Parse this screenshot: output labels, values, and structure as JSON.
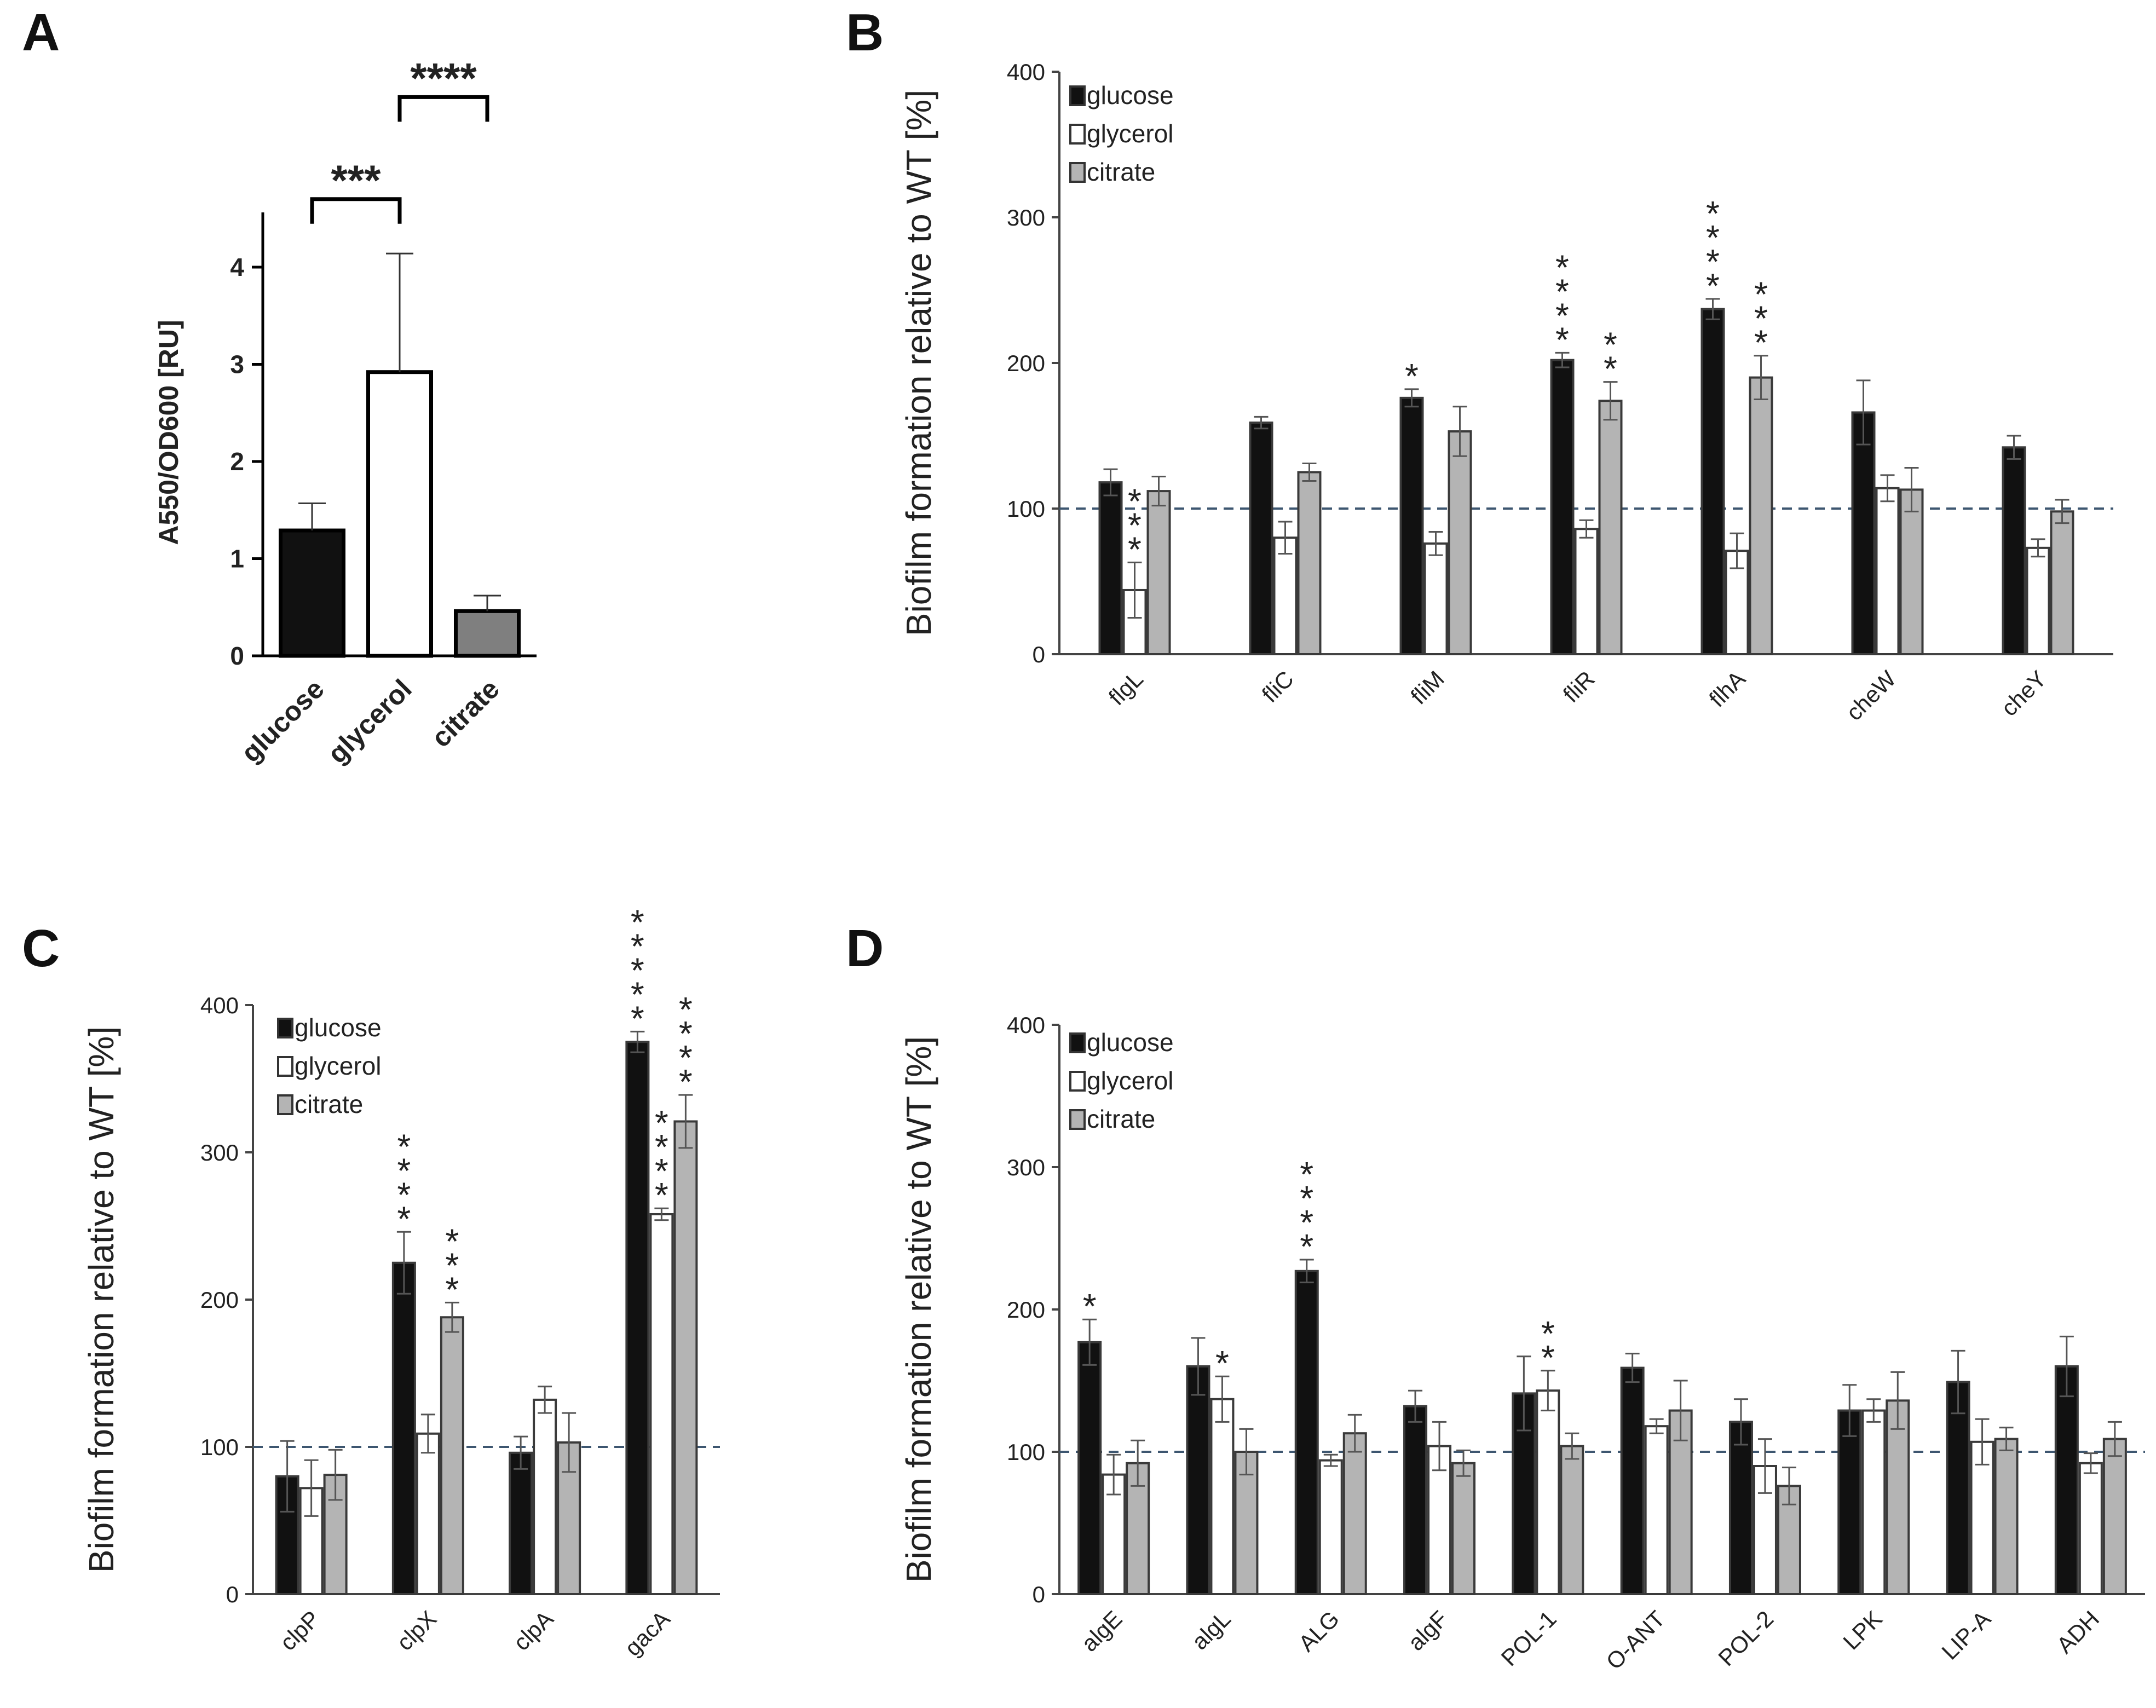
{
  "colors": {
    "glucose": "#111111",
    "glycerol": "#ffffff",
    "citrate": "#b4b4b4",
    "panelA_citrate": "#7f7f7f",
    "axis": "#444444",
    "dashed": "#3d5670"
  },
  "chart_data": [
    {
      "id": "A",
      "panel_label": "A",
      "type": "bar",
      "ylabel": "A550/OD600 [RU]",
      "ylim": [
        0,
        4.6
      ],
      "yticks": [
        "0",
        "1",
        "2",
        "3",
        "4"
      ],
      "categories": [
        "glucose",
        "glycerol",
        "citrate"
      ],
      "values": [
        1.29,
        2.92,
        0.46
      ],
      "errors": [
        0.28,
        1.22,
        0.16
      ],
      "brackets": [
        {
          "from": 0,
          "to": 1,
          "y": 4.7,
          "label": "***"
        },
        {
          "from": 1,
          "to": 2,
          "y": 5.75,
          "label": "****"
        }
      ]
    },
    {
      "id": "B",
      "panel_label": "B",
      "type": "bar",
      "ylabel": "Biofilm formation relative to WT [%]",
      "ylim": [
        0,
        400
      ],
      "yticks": [
        "0",
        "100",
        "200",
        "300",
        "400"
      ],
      "reference_line": 100,
      "categories": [
        "flgL",
        "fliC",
        "fliM",
        "fliR",
        "flhA",
        "cheW",
        "cheY"
      ],
      "legend": [
        "glucose",
        "glycerol",
        "citrate"
      ],
      "series": [
        {
          "name": "glucose",
          "values": [
            118,
            159,
            176,
            202,
            237,
            166,
            142
          ],
          "errors": [
            9,
            4,
            6,
            5,
            7,
            22,
            8
          ],
          "stars": [
            "",
            "",
            "*",
            "****",
            "****",
            "",
            ""
          ]
        },
        {
          "name": "glycerol",
          "values": [
            44,
            80,
            76,
            86,
            71,
            114,
            73
          ],
          "errors": [
            19,
            11,
            8,
            6,
            12,
            9,
            6
          ],
          "stars": [
            "***",
            "",
            "",
            "",
            "",
            "",
            ""
          ]
        },
        {
          "name": "citrate",
          "values": [
            112,
            125,
            153,
            174,
            190,
            113,
            98
          ],
          "errors": [
            10,
            6,
            17,
            13,
            15,
            15,
            8
          ],
          "stars": [
            "",
            "",
            "",
            "**",
            "***",
            "",
            ""
          ]
        }
      ]
    },
    {
      "id": "C",
      "panel_label": "C",
      "type": "bar",
      "ylabel": "Biofilm formation relative to WT [%]",
      "ylim": [
        0,
        400
      ],
      "yticks": [
        "0",
        "100",
        "200",
        "300",
        "400"
      ],
      "reference_line": 100,
      "categories": [
        "clpP",
        "clpX",
        "clpA",
        "gacA"
      ],
      "legend": [
        "glucose",
        "glycerol",
        "citrate"
      ],
      "series": [
        {
          "name": "glucose",
          "values": [
            80,
            225,
            96,
            375
          ],
          "errors": [
            24,
            21,
            11,
            7
          ],
          "stars": [
            "",
            "****",
            "",
            "*****"
          ]
        },
        {
          "name": "glycerol",
          "values": [
            72,
            109,
            132,
            258
          ],
          "errors": [
            19,
            13,
            9,
            4
          ],
          "stars": [
            "",
            "",
            "",
            "****"
          ]
        },
        {
          "name": "citrate",
          "values": [
            81,
            188,
            103,
            321
          ],
          "errors": [
            17,
            10,
            20,
            18
          ],
          "stars": [
            "",
            "***",
            "",
            "****"
          ]
        }
      ]
    },
    {
      "id": "D",
      "panel_label": "D",
      "type": "bar",
      "ylabel": "Biofilm formation relative to WT [%]",
      "ylim": [
        0,
        400
      ],
      "yticks": [
        "0",
        "100",
        "200",
        "300",
        "400"
      ],
      "reference_line": 100,
      "categories": [
        "algE",
        "algL",
        "ALG",
        "algF",
        "POL-1",
        "O-ANT",
        "POL-2",
        "LPK",
        "LIP-A",
        "ADH"
      ],
      "legend": [
        "glucose",
        "glycerol",
        "citrate"
      ],
      "series": [
        {
          "name": "glucose",
          "values": [
            177,
            160,
            227,
            132,
            141,
            159,
            121,
            129,
            149,
            160
          ],
          "errors": [
            16,
            20,
            8,
            11,
            26,
            10,
            16,
            18,
            22,
            21
          ],
          "stars": [
            "*",
            "",
            "****",
            "",
            "",
            "",
            "",
            "",
            "",
            ""
          ]
        },
        {
          "name": "glycerol",
          "values": [
            84,
            137,
            94,
            104,
            143,
            118,
            90,
            129,
            107,
            92
          ],
          "errors": [
            14,
            16,
            4,
            17,
            14,
            5,
            19,
            8,
            16,
            7
          ],
          "stars": [
            "",
            "*",
            "",
            "",
            "**",
            "",
            "",
            "",
            "",
            ""
          ]
        },
        {
          "name": "citrate",
          "values": [
            92,
            100,
            113,
            92,
            104,
            129,
            76,
            136,
            109,
            109
          ],
          "errors": [
            16,
            16,
            13,
            9,
            9,
            21,
            13,
            20,
            8,
            12
          ],
          "stars": [
            "",
            "",
            "",
            "",
            "",
            "",
            "",
            "",
            "",
            ""
          ]
        }
      ]
    }
  ]
}
